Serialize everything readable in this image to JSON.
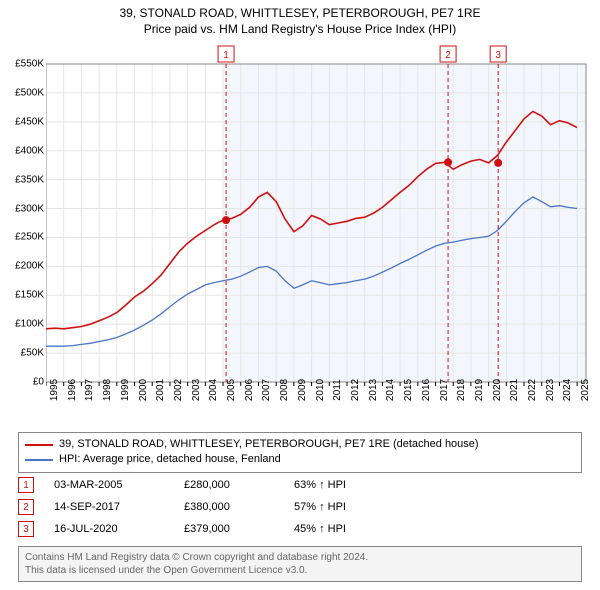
{
  "title_line1": "39, STONALD ROAD, WHITTLESEY, PETERBOROUGH, PE7 1RE",
  "title_line2": "Price paid vs. HM Land Registry's House Price Index (HPI)",
  "chart": {
    "type": "line",
    "background_color": "#ffffff",
    "grid_color": "#e5e5e5",
    "grid_on": true,
    "x_years": [
      1995,
      1996,
      1997,
      1998,
      1999,
      2000,
      2001,
      2002,
      2003,
      2004,
      2005,
      2006,
      2007,
      2008,
      2009,
      2010,
      2011,
      2012,
      2013,
      2014,
      2015,
      2016,
      2017,
      2018,
      2019,
      2020,
      2021,
      2022,
      2023,
      2024,
      2025
    ],
    "xlim": [
      1995,
      2025.5
    ],
    "ylim": [
      0,
      550000
    ],
    "ytick_step": 50000,
    "ytick_labels": [
      "£0",
      "£50K",
      "£100K",
      "£150K",
      "£200K",
      "£250K",
      "£300K",
      "£350K",
      "£400K",
      "£450K",
      "£500K",
      "£550K"
    ],
    "xtick_years": [
      1995,
      1996,
      1997,
      1998,
      1999,
      2000,
      2001,
      2002,
      2003,
      2004,
      2005,
      2006,
      2007,
      2008,
      2009,
      2010,
      2011,
      2012,
      2013,
      2014,
      2015,
      2016,
      2017,
      2018,
      2019,
      2020,
      2021,
      2022,
      2023,
      2024,
      2025
    ],
    "label_fontsize": 10,
    "title_fontsize": 12,
    "series": [
      {
        "name": "property",
        "color": "#d01010",
        "line_width": 1.6,
        "values": [
          [
            1995,
            92000
          ],
          [
            1995.5,
            93000
          ],
          [
            1996,
            92000
          ],
          [
            1996.5,
            94000
          ],
          [
            1997,
            96000
          ],
          [
            1997.5,
            100000
          ],
          [
            1998,
            106000
          ],
          [
            1998.5,
            112000
          ],
          [
            1999,
            120000
          ],
          [
            1999.5,
            133000
          ],
          [
            2000,
            147000
          ],
          [
            2000.5,
            157000
          ],
          [
            2001,
            170000
          ],
          [
            2001.5,
            185000
          ],
          [
            2002,
            205000
          ],
          [
            2002.5,
            225000
          ],
          [
            2003,
            240000
          ],
          [
            2003.5,
            252000
          ],
          [
            2004,
            262000
          ],
          [
            2004.5,
            272000
          ],
          [
            2005,
            280000
          ],
          [
            2005.5,
            283000
          ],
          [
            2006,
            290000
          ],
          [
            2006.5,
            302000
          ],
          [
            2007,
            320000
          ],
          [
            2007.5,
            328000
          ],
          [
            2008,
            312000
          ],
          [
            2008.5,
            282000
          ],
          [
            2009,
            260000
          ],
          [
            2009.5,
            270000
          ],
          [
            2010,
            288000
          ],
          [
            2010.5,
            282000
          ],
          [
            2011,
            272000
          ],
          [
            2011.5,
            275000
          ],
          [
            2012,
            278000
          ],
          [
            2012.5,
            283000
          ],
          [
            2013,
            285000
          ],
          [
            2013.5,
            292000
          ],
          [
            2014,
            302000
          ],
          [
            2014.5,
            315000
          ],
          [
            2015,
            328000
          ],
          [
            2015.5,
            340000
          ],
          [
            2016,
            355000
          ],
          [
            2016.5,
            368000
          ],
          [
            2017,
            378000
          ],
          [
            2017.5,
            380000
          ],
          [
            2018,
            368000
          ],
          [
            2018.5,
            376000
          ],
          [
            2019,
            382000
          ],
          [
            2019.5,
            385000
          ],
          [
            2020,
            379000
          ],
          [
            2020.5,
            392000
          ],
          [
            2021,
            415000
          ],
          [
            2021.5,
            435000
          ],
          [
            2022,
            455000
          ],
          [
            2022.5,
            468000
          ],
          [
            2023,
            460000
          ],
          [
            2023.5,
            445000
          ],
          [
            2024,
            452000
          ],
          [
            2024.5,
            448000
          ],
          [
            2025,
            440000
          ]
        ]
      },
      {
        "name": "hpi",
        "color": "#4a74c9",
        "line_width": 1.3,
        "values": [
          [
            1995,
            62000
          ],
          [
            1995.5,
            62000
          ],
          [
            1996,
            62000
          ],
          [
            1996.5,
            63000
          ],
          [
            1997,
            65000
          ],
          [
            1997.5,
            67000
          ],
          [
            1998,
            70000
          ],
          [
            1998.5,
            73000
          ],
          [
            1999,
            77000
          ],
          [
            1999.5,
            83000
          ],
          [
            2000,
            90000
          ],
          [
            2000.5,
            98000
          ],
          [
            2001,
            107000
          ],
          [
            2001.5,
            118000
          ],
          [
            2002,
            130000
          ],
          [
            2002.5,
            142000
          ],
          [
            2003,
            152000
          ],
          [
            2003.5,
            160000
          ],
          [
            2004,
            168000
          ],
          [
            2004.5,
            172000
          ],
          [
            2005,
            175000
          ],
          [
            2005.5,
            178000
          ],
          [
            2006,
            183000
          ],
          [
            2006.5,
            190000
          ],
          [
            2007,
            198000
          ],
          [
            2007.5,
            200000
          ],
          [
            2008,
            192000
          ],
          [
            2008.5,
            175000
          ],
          [
            2009,
            162000
          ],
          [
            2009.5,
            168000
          ],
          [
            2010,
            175000
          ],
          [
            2010.5,
            172000
          ],
          [
            2011,
            168000
          ],
          [
            2011.5,
            170000
          ],
          [
            2012,
            172000
          ],
          [
            2012.5,
            175000
          ],
          [
            2013,
            178000
          ],
          [
            2013.5,
            183000
          ],
          [
            2014,
            190000
          ],
          [
            2014.5,
            197000
          ],
          [
            2015,
            205000
          ],
          [
            2015.5,
            212000
          ],
          [
            2016,
            220000
          ],
          [
            2016.5,
            228000
          ],
          [
            2017,
            235000
          ],
          [
            2017.5,
            240000
          ],
          [
            2018,
            242000
          ],
          [
            2018.5,
            245000
          ],
          [
            2019,
            248000
          ],
          [
            2019.5,
            250000
          ],
          [
            2020,
            252000
          ],
          [
            2020.5,
            262000
          ],
          [
            2021,
            278000
          ],
          [
            2021.5,
            295000
          ],
          [
            2022,
            310000
          ],
          [
            2022.5,
            320000
          ],
          [
            2023,
            312000
          ],
          [
            2023.5,
            303000
          ],
          [
            2024,
            305000
          ],
          [
            2024.5,
            302000
          ],
          [
            2025,
            300000
          ]
        ]
      }
    ],
    "markers": [
      {
        "n": "1",
        "x": 2005.17,
        "y": 280000,
        "vline_color": "#d01010",
        "vline_dash": "4,3",
        "dot_color": "#d01010"
      },
      {
        "n": "2",
        "x": 2017.71,
        "y": 380000,
        "vline_color": "#d01010",
        "vline_dash": "4,3",
        "dot_color": "#d01010"
      },
      {
        "n": "3",
        "x": 2020.54,
        "y": 379000,
        "vline_color": "#d01010",
        "vline_dash": "4,3",
        "dot_color": "#d01010"
      }
    ],
    "shaded_band": {
      "from_x": 2005.17,
      "to_x": 2025.5,
      "fill": "#f3f6fc"
    }
  },
  "legend": {
    "items": [
      {
        "color": "#d01010",
        "label": "39, STONALD ROAD, WHITTLESEY, PETERBOROUGH, PE7 1RE (detached house)"
      },
      {
        "color": "#4a74c9",
        "label": "HPI: Average price, detached house, Fenland"
      }
    ]
  },
  "marker_rows": [
    {
      "n": "1",
      "date": "03-MAR-2005",
      "price": "£280,000",
      "pct": "63% ↑ HPI"
    },
    {
      "n": "2",
      "date": "14-SEP-2017",
      "price": "£380,000",
      "pct": "57% ↑ HPI"
    },
    {
      "n": "3",
      "date": "16-JUL-2020",
      "price": "£379,000",
      "pct": "45% ↑ HPI"
    }
  ],
  "attribution": {
    "line1": "Contains HM Land Registry data © Crown copyright and database right 2024.",
    "line2": "This data is licensed under the Open Government Licence v3.0."
  }
}
